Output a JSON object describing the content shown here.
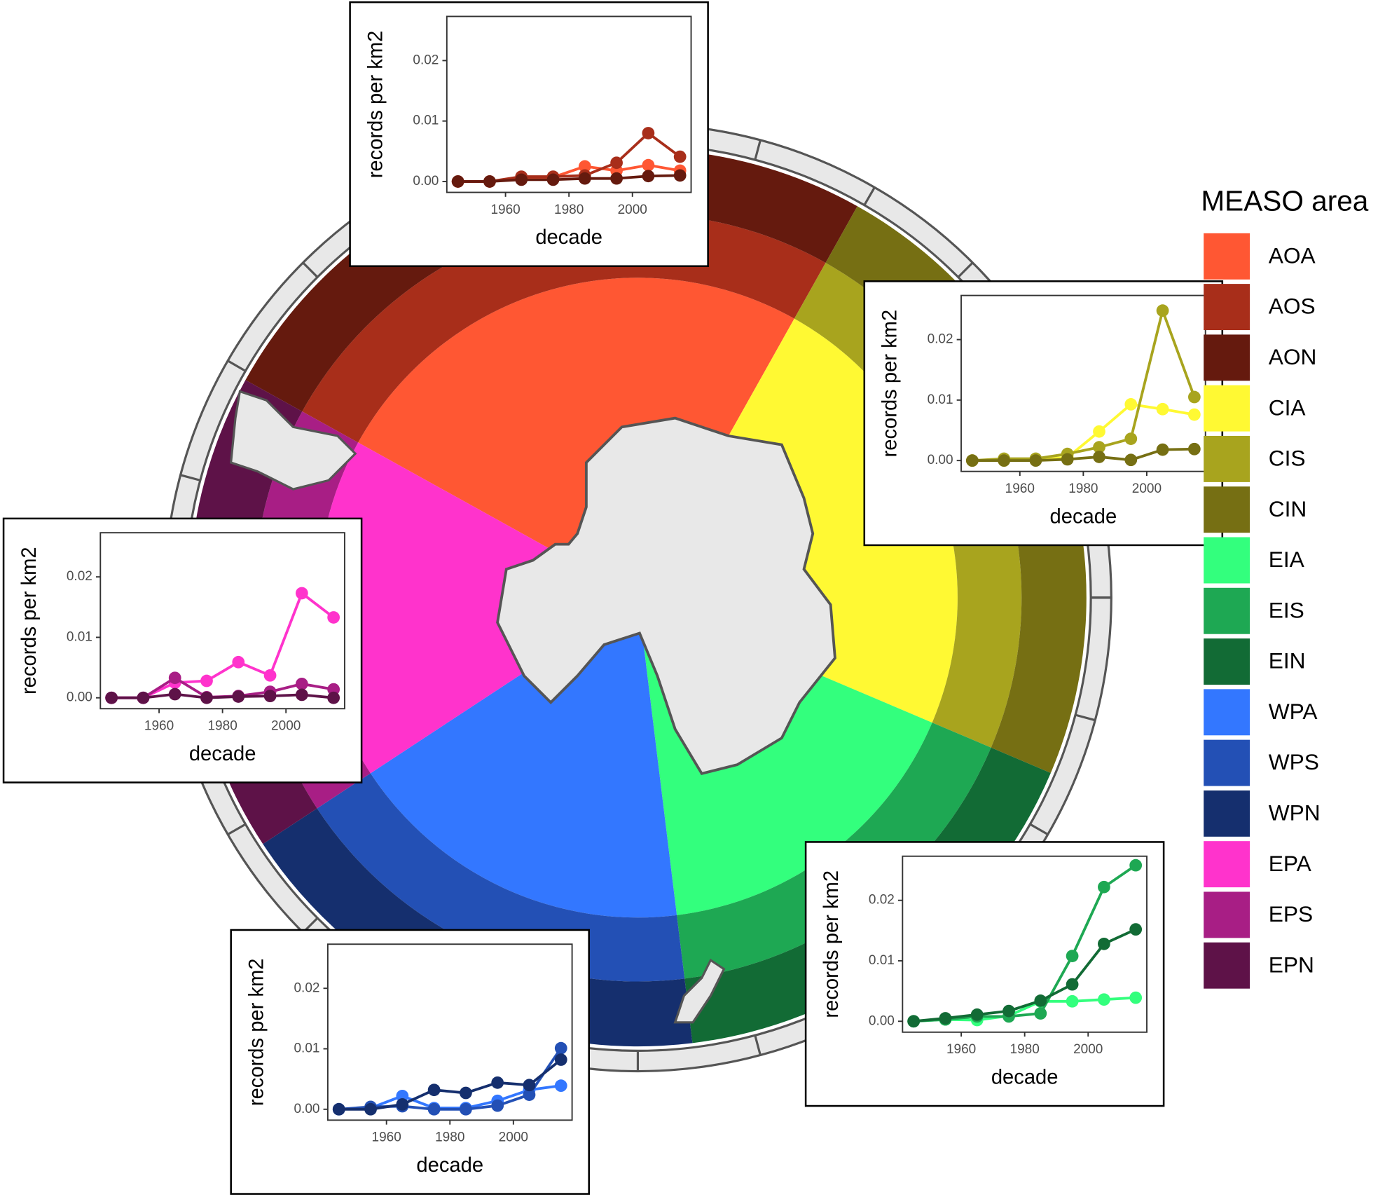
{
  "legend_title": "MEASO area",
  "chart_data": [
    {
      "type": "line",
      "xlabel": "decade",
      "ylabel": "records per km2",
      "x": [
        1945,
        1955,
        1965,
        1975,
        1985,
        1995,
        2005,
        2015
      ],
      "xlim": [
        1941.5,
        2018.5
      ],
      "ylim": [
        -0.0018,
        0.0273
      ],
      "xticks": [
        1960,
        1980,
        2000
      ],
      "yticks": [
        {
          "value": 0,
          "label": "0.00"
        },
        {
          "value": 0.01,
          "label": "0.01"
        },
        {
          "value": 0.02,
          "label": "0.02"
        }
      ],
      "series": [
        {
          "name": "AOA",
          "color": "#FF5733",
          "values": [
            0,
            0,
            0.0005,
            0.0007,
            0.0025,
            0.0018,
            0.0027,
            0.0018
          ]
        },
        {
          "name": "AOS",
          "color": "#A82E1A",
          "values": [
            0,
            0,
            0.0008,
            0.0008,
            0.001,
            0.0031,
            0.008,
            0.0041
          ]
        },
        {
          "name": "AON",
          "color": "#651A0E",
          "values": [
            0,
            0,
            0.0003,
            0.0003,
            0.0005,
            0.0005,
            0.0009,
            0.001
          ]
        }
      ]
    },
    {
      "type": "line",
      "xlabel": "decade",
      "ylabel": "records per km2",
      "x": [
        1945,
        1955,
        1965,
        1975,
        1985,
        1995,
        2005,
        2015
      ],
      "xlim": [
        1941.5,
        2018.5
      ],
      "ylim": [
        -0.0018,
        0.0273
      ],
      "xticks": [
        1960,
        1980,
        2000
      ],
      "yticks": [
        {
          "value": 0,
          "label": "0.00"
        },
        {
          "value": 0.01,
          "label": "0.01"
        },
        {
          "value": 0.02,
          "label": "0.02"
        }
      ],
      "series": [
        {
          "name": "CIA",
          "color": "#FFF933",
          "values": [
            0,
            0,
            0.0002,
            0.0005,
            0.0048,
            0.0093,
            0.0085,
            0.0076
          ]
        },
        {
          "name": "CIS",
          "color": "#A8A41E",
          "values": [
            0,
            0.0003,
            0.0003,
            0.0011,
            0.0022,
            0.0036,
            0.0248,
            0.0105
          ]
        },
        {
          "name": "CIN",
          "color": "#766F13",
          "values": [
            0,
            0,
            0,
            0.0002,
            0.0006,
            0.0001,
            0.0018,
            0.0019
          ]
        }
      ]
    },
    {
      "type": "line",
      "xlabel": "decade",
      "ylabel": "records per km2",
      "x": [
        1945,
        1955,
        1965,
        1975,
        1985,
        1995,
        2005,
        2015
      ],
      "xlim": [
        1941.5,
        2018.5
      ],
      "ylim": [
        -0.0018,
        0.0273
      ],
      "xticks": [
        1960,
        1980,
        2000
      ],
      "yticks": [
        {
          "value": 0,
          "label": "0.00"
        },
        {
          "value": 0.01,
          "label": "0.01"
        },
        {
          "value": 0.02,
          "label": "0.02"
        }
      ],
      "series": [
        {
          "name": "EIA",
          "color": "#33FF7D",
          "values": [
            0,
            0.0003,
            0.0002,
            0.0009,
            0.0033,
            0.0033,
            0.0036,
            0.0039
          ]
        },
        {
          "name": "EIS",
          "color": "#1EA853",
          "values": [
            0,
            0.0003,
            0.0008,
            0.0008,
            0.0013,
            0.0108,
            0.0222,
            0.0258
          ]
        },
        {
          "name": "EIN",
          "color": "#126B35",
          "values": [
            0,
            0.0005,
            0.0011,
            0.0017,
            0.0034,
            0.0061,
            0.0128,
            0.0152
          ]
        }
      ]
    },
    {
      "type": "line",
      "xlabel": "decade",
      "ylabel": "records per km2",
      "x": [
        1945,
        1955,
        1965,
        1975,
        1985,
        1995,
        2005,
        2015
      ],
      "xlim": [
        1941.5,
        2018.5
      ],
      "ylim": [
        -0.0018,
        0.0273
      ],
      "xticks": [
        1960,
        1980,
        2000
      ],
      "yticks": [
        {
          "value": 0,
          "label": "0.00"
        },
        {
          "value": 0.01,
          "label": "0.01"
        },
        {
          "value": 0.02,
          "label": "0.02"
        }
      ],
      "series": [
        {
          "name": "WPA",
          "color": "#3377FF",
          "values": [
            0,
            0.0002,
            0.0022,
            0.0002,
            0.0002,
            0.0014,
            0.0032,
            0.0039
          ]
        },
        {
          "name": "WPS",
          "color": "#2350B5",
          "values": [
            0,
            0.0004,
            0.0005,
            0,
            0,
            0.0006,
            0.0024,
            0.0101
          ]
        },
        {
          "name": "WPN",
          "color": "#152F6E",
          "values": [
            0,
            0,
            0.0008,
            0.0032,
            0.0027,
            0.0044,
            0.004,
            0.0082
          ]
        }
      ]
    },
    {
      "type": "line",
      "xlabel": "decade",
      "ylabel": "records per km2",
      "x": [
        1945,
        1955,
        1965,
        1975,
        1985,
        1995,
        2005,
        2015
      ],
      "xlim": [
        1941.5,
        2018.5
      ],
      "ylim": [
        -0.0018,
        0.0273
      ],
      "xticks": [
        1960,
        1980,
        2000
      ],
      "yticks": [
        {
          "value": 0,
          "label": "0.00"
        },
        {
          "value": 0.01,
          "label": "0.01"
        },
        {
          "value": 0.02,
          "label": "0.02"
        }
      ],
      "series": [
        {
          "name": "EPA",
          "color": "#FF33CC",
          "values": [
            0,
            0,
            0.0025,
            0.0028,
            0.0059,
            0.0037,
            0.0173,
            0.0133
          ]
        },
        {
          "name": "EPS",
          "color": "#A81E85",
          "values": [
            0,
            0,
            0.0033,
            0.0001,
            0.0003,
            0.001,
            0.0023,
            0.0014
          ]
        },
        {
          "name": "EPN",
          "color": "#5E1248",
          "values": [
            0,
            0,
            0.0006,
            0,
            0.0002,
            0.0003,
            0.0005,
            0
          ]
        }
      ]
    }
  ]
}
